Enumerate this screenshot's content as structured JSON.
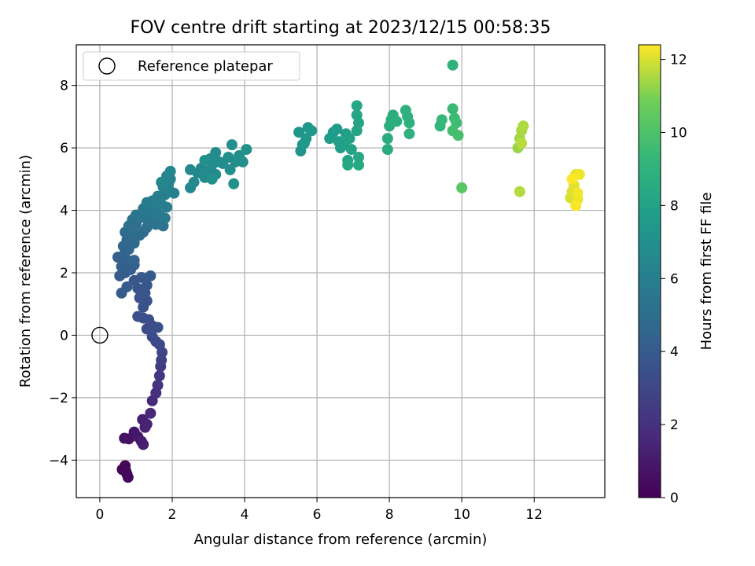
{
  "chart_data": {
    "type": "scatter",
    "title": "FOV centre drift starting at 2023/12/15 00:58:35",
    "xlabel": "Angular distance from reference (arcmin)",
    "ylabel": "Rotation from reference (arcmin)",
    "xlim": [
      -0.65,
      13.95
    ],
    "ylim": [
      -5.2,
      9.3
    ],
    "xticks": [
      0,
      2,
      4,
      6,
      8,
      10,
      12
    ],
    "yticks": [
      -4,
      -2,
      0,
      2,
      4,
      6,
      8
    ],
    "grid": true,
    "colorbar": {
      "label": "Hours from first FF file",
      "range": [
        0,
        12.4
      ],
      "ticks": [
        0,
        2,
        4,
        6,
        8,
        10,
        12
      ],
      "colormap": "viridis"
    },
    "legend": {
      "location": "upper-left",
      "entries": [
        "Reference platepar"
      ]
    },
    "reference_point": {
      "x": 0,
      "y": 0
    },
    "series": [
      {
        "points": [
          [
            0.62,
            -4.3,
            0.1
          ],
          [
            0.7,
            -4.18,
            0.15
          ],
          [
            0.75,
            -4.45,
            0.2
          ],
          [
            0.78,
            -4.55,
            0.25
          ],
          [
            0.72,
            -4.35,
            0.3
          ],
          [
            0.68,
            -3.3,
            0.6
          ],
          [
            0.8,
            -3.32,
            0.7
          ],
          [
            0.95,
            -3.1,
            0.8
          ],
          [
            1.05,
            -3.25,
            0.9
          ],
          [
            1.15,
            -3.4,
            1.0
          ],
          [
            1.2,
            -3.5,
            1.1
          ],
          [
            1.18,
            -2.7,
            1.2
          ],
          [
            1.25,
            -2.95,
            1.3
          ],
          [
            1.3,
            -2.85,
            1.4
          ],
          [
            1.4,
            -2.5,
            1.5
          ],
          [
            1.45,
            -2.1,
            1.7
          ],
          [
            1.55,
            -1.85,
            1.9
          ],
          [
            1.6,
            -1.6,
            2.1
          ],
          [
            1.65,
            -1.3,
            2.3
          ],
          [
            1.68,
            -1.0,
            2.5
          ],
          [
            1.7,
            -0.8,
            2.7
          ],
          [
            1.72,
            -0.55,
            2.9
          ],
          [
            1.65,
            -0.3,
            3.0
          ],
          [
            1.55,
            -0.2,
            3.1
          ],
          [
            1.45,
            -0.05,
            3.2
          ],
          [
            1.3,
            0.2,
            3.25
          ],
          [
            1.35,
            0.5,
            3.3
          ],
          [
            1.45,
            0.3,
            3.35
          ],
          [
            1.6,
            0.25,
            3.4
          ],
          [
            1.2,
            0.55,
            3.45
          ],
          [
            1.05,
            0.6,
            3.5
          ],
          [
            1.2,
            0.9,
            3.55
          ],
          [
            1.3,
            1.1,
            3.6
          ],
          [
            1.1,
            1.2,
            3.65
          ],
          [
            1.25,
            1.35,
            3.7
          ],
          [
            1.05,
            1.5,
            3.75
          ],
          [
            1.3,
            1.6,
            3.8
          ],
          [
            0.95,
            1.75,
            3.85
          ],
          [
            1.15,
            1.85,
            3.9
          ],
          [
            1.4,
            1.9,
            3.95
          ],
          [
            0.6,
            1.35,
            4.0
          ],
          [
            0.75,
            1.55,
            4.05
          ],
          [
            0.55,
            1.9,
            4.1
          ],
          [
            0.7,
            2.0,
            4.15
          ],
          [
            0.85,
            2.1,
            4.2
          ],
          [
            0.6,
            2.2,
            4.25
          ],
          [
            0.95,
            2.25,
            4.3
          ],
          [
            0.5,
            2.5,
            4.35
          ],
          [
            0.75,
            2.4,
            4.4
          ],
          [
            0.95,
            2.4,
            4.45
          ],
          [
            0.7,
            2.65,
            4.5
          ],
          [
            0.8,
            2.75,
            4.55
          ],
          [
            0.65,
            2.85,
            4.6
          ],
          [
            0.95,
            2.95,
            4.65
          ],
          [
            0.75,
            3.05,
            4.7
          ],
          [
            0.85,
            3.15,
            4.75
          ],
          [
            0.7,
            3.3,
            4.8
          ],
          [
            1.1,
            3.2,
            4.85
          ],
          [
            0.9,
            3.35,
            4.9
          ],
          [
            1.2,
            3.3,
            4.95
          ],
          [
            0.8,
            3.5,
            5.0
          ],
          [
            1.0,
            3.55,
            5.05
          ],
          [
            1.3,
            3.45,
            5.1
          ],
          [
            0.9,
            3.7,
            5.15
          ],
          [
            1.1,
            3.75,
            5.2
          ],
          [
            1.35,
            3.6,
            5.25
          ],
          [
            1.55,
            3.55,
            5.3
          ],
          [
            1.75,
            3.5,
            5.35
          ],
          [
            1.25,
            3.8,
            5.4
          ],
          [
            1.0,
            3.85,
            5.45
          ],
          [
            1.5,
            3.8,
            5.5
          ],
          [
            1.4,
            3.95,
            5.55
          ],
          [
            1.2,
            4.05,
            5.6
          ],
          [
            1.65,
            3.85,
            5.65
          ],
          [
            1.8,
            3.75,
            5.7
          ],
          [
            1.55,
            4.05,
            5.75
          ],
          [
            1.3,
            4.25,
            5.8
          ],
          [
            1.45,
            4.3,
            5.85
          ],
          [
            1.7,
            4.2,
            5.9
          ],
          [
            1.85,
            4.1,
            5.95
          ],
          [
            1.6,
            4.45,
            6.0
          ],
          [
            1.8,
            4.5,
            6.05
          ],
          [
            1.95,
            4.6,
            6.1
          ],
          [
            2.05,
            4.55,
            6.15
          ],
          [
            1.75,
            4.75,
            6.2
          ],
          [
            1.9,
            4.85,
            6.25
          ],
          [
            1.95,
            5.0,
            6.3
          ],
          [
            1.85,
            5.1,
            6.35
          ],
          [
            1.95,
            5.25,
            6.4
          ],
          [
            1.7,
            4.9,
            6.45
          ],
          [
            2.5,
            4.72,
            6.5
          ],
          [
            2.6,
            4.9,
            6.52
          ],
          [
            2.5,
            5.3,
            6.55
          ],
          [
            2.7,
            5.2,
            6.58
          ],
          [
            2.8,
            5.35,
            6.6
          ],
          [
            2.9,
            5.05,
            6.62
          ],
          [
            3.0,
            5.25,
            6.65
          ],
          [
            3.1,
            5.45,
            6.68
          ],
          [
            3.2,
            5.15,
            6.7
          ],
          [
            3.05,
            5.65,
            6.72
          ],
          [
            3.3,
            5.55,
            6.75
          ],
          [
            3.4,
            5.5,
            6.78
          ],
          [
            3.2,
            5.85,
            6.8
          ],
          [
            3.55,
            5.7,
            6.82
          ],
          [
            3.6,
            5.3,
            6.85
          ],
          [
            3.75,
            5.55,
            6.88
          ],
          [
            3.85,
            5.75,
            6.9
          ],
          [
            3.65,
            6.1,
            6.92
          ],
          [
            3.95,
            5.55,
            6.95
          ],
          [
            4.05,
            5.95,
            6.98
          ],
          [
            3.7,
            4.85,
            7.0
          ],
          [
            3.1,
            5.0,
            7.02
          ],
          [
            2.9,
            5.6,
            7.05
          ],
          [
            5.55,
            5.9,
            7.2
          ],
          [
            5.6,
            6.1,
            7.25
          ],
          [
            5.5,
            6.5,
            7.3
          ],
          [
            5.7,
            6.3,
            7.35
          ],
          [
            5.75,
            6.65,
            7.4
          ],
          [
            5.85,
            6.55,
            7.45
          ],
          [
            5.65,
            6.15,
            7.5
          ],
          [
            6.35,
            6.3,
            7.6
          ],
          [
            6.45,
            6.5,
            7.65
          ],
          [
            6.55,
            6.6,
            7.7
          ],
          [
            6.6,
            6.2,
            7.75
          ],
          [
            6.65,
            6.0,
            7.8
          ],
          [
            6.75,
            6.1,
            7.85
          ],
          [
            6.8,
            6.45,
            7.9
          ],
          [
            6.9,
            6.3,
            7.95
          ],
          [
            6.95,
            5.95,
            8.0
          ],
          [
            6.85,
            5.6,
            8.05
          ],
          [
            7.1,
            6.55,
            8.1
          ],
          [
            7.15,
            6.8,
            8.15
          ],
          [
            7.1,
            7.05,
            8.2
          ],
          [
            7.1,
            7.35,
            8.25
          ],
          [
            7.15,
            5.7,
            8.3
          ],
          [
            7.15,
            5.45,
            8.35
          ],
          [
            6.85,
            5.45,
            8.4
          ],
          [
            7.95,
            5.95,
            8.5
          ],
          [
            7.95,
            6.3,
            8.55
          ],
          [
            8.0,
            6.7,
            8.6
          ],
          [
            8.05,
            6.9,
            8.65
          ],
          [
            8.1,
            7.05,
            8.7
          ],
          [
            8.2,
            6.85,
            8.75
          ],
          [
            8.45,
            7.2,
            8.8
          ],
          [
            8.5,
            7.0,
            8.85
          ],
          [
            8.55,
            6.8,
            8.9
          ],
          [
            8.55,
            6.45,
            8.95
          ],
          [
            9.4,
            6.7,
            9.2
          ],
          [
            9.45,
            6.9,
            9.3
          ],
          [
            9.75,
            7.25,
            9.4
          ],
          [
            9.8,
            6.95,
            9.5
          ],
          [
            9.85,
            6.8,
            9.6
          ],
          [
            9.75,
            6.55,
            9.7
          ],
          [
            9.9,
            6.4,
            9.8
          ],
          [
            9.75,
            8.65,
            9.0
          ],
          [
            10.0,
            4.72,
            10.3
          ],
          [
            11.55,
            6.0,
            11.3
          ],
          [
            11.6,
            6.3,
            11.4
          ],
          [
            11.65,
            6.55,
            11.5
          ],
          [
            11.7,
            6.7,
            11.55
          ],
          [
            11.6,
            4.6,
            11.6
          ],
          [
            11.65,
            6.15,
            11.65
          ],
          [
            13.0,
            4.4,
            12.0
          ],
          [
            13.05,
            4.6,
            12.05
          ],
          [
            13.1,
            4.8,
            12.1
          ],
          [
            13.15,
            5.15,
            12.15
          ],
          [
            13.2,
            4.35,
            12.2
          ],
          [
            13.25,
            5.15,
            12.25
          ],
          [
            13.2,
            4.55,
            12.3
          ],
          [
            13.15,
            4.15,
            12.35
          ],
          [
            13.05,
            5.0,
            12.38
          ]
        ]
      }
    ]
  }
}
